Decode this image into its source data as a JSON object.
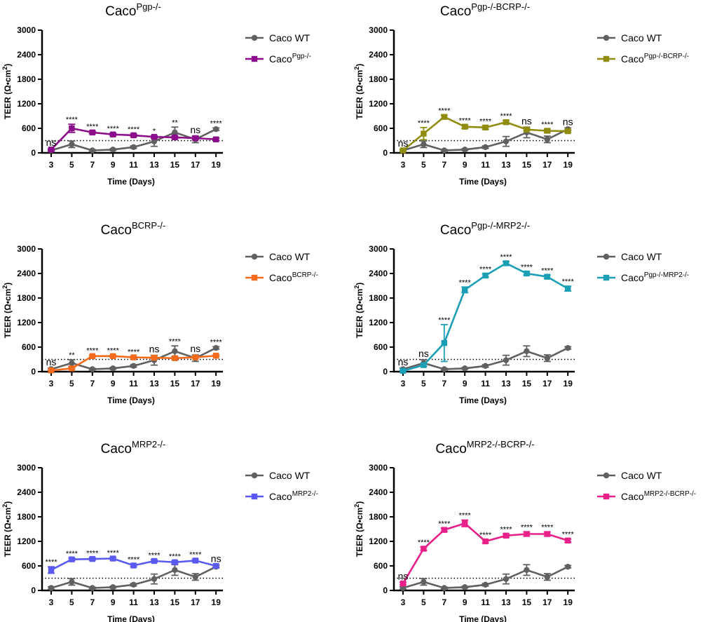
{
  "figure": {
    "annot_marker": "*",
    "wt_color": "#606060"
  },
  "chart_data": [
    {
      "type": "line",
      "title_base": "Caco",
      "title_sup": "Pgp-/-",
      "xlabel": "Time (Days)",
      "ylabel": "TEER (Ω•cm2)",
      "x": [
        3,
        5,
        7,
        9,
        11,
        13,
        15,
        17,
        19
      ],
      "xticklabels": [
        "3",
        "5",
        "7",
        "9",
        "11",
        "13",
        "15",
        "17",
        "19"
      ],
      "ylim": [
        0,
        3000
      ],
      "yticks": [
        0,
        600,
        1200,
        1800,
        2400,
        3000
      ],
      "yticklabels": [
        "0",
        "600",
        "1200",
        "1800",
        "2400",
        "3000"
      ],
      "threshold": 300,
      "series": [
        {
          "name": "Caco WT",
          "name_base": "Caco WT",
          "name_sup": "",
          "color": "#606060",
          "marker": "circle",
          "values": [
            60,
            210,
            60,
            80,
            140,
            280,
            500,
            330,
            580
          ],
          "errors": [
            30,
            80,
            20,
            20,
            30,
            120,
            130,
            80,
            30
          ]
        },
        {
          "name": "CacoPgp-/-",
          "name_base": "Caco",
          "name_sup": "Pgp-/-",
          "color": "#8b0d8b",
          "marker": "square",
          "values": [
            80,
            600,
            500,
            450,
            430,
            390,
            380,
            360,
            330
          ],
          "errors": [
            20,
            100,
            30,
            30,
            30,
            30,
            30,
            40,
            30
          ]
        }
      ],
      "annotations": [
        "ns",
        "****",
        "****",
        "****",
        "****",
        "*",
        "**",
        "ns",
        "****"
      ]
    },
    {
      "type": "line",
      "title_base": "Caco",
      "title_sup": "Pgp-/-BCRP-/-",
      "xlabel": "Time (Days)",
      "ylabel": "TEER (Ω•cm2)",
      "x": [
        3,
        5,
        7,
        9,
        11,
        13,
        15,
        17,
        19
      ],
      "xticklabels": [
        "3",
        "5",
        "7",
        "9",
        "11",
        "13",
        "15",
        "17",
        "19"
      ],
      "ylim": [
        0,
        3000
      ],
      "yticks": [
        0,
        600,
        1200,
        1800,
        2400,
        3000
      ],
      "yticklabels": [
        "0",
        "600",
        "1200",
        "1800",
        "2400",
        "3000"
      ],
      "threshold": 300,
      "series": [
        {
          "name": "Caco WT",
          "name_base": "Caco WT",
          "name_sup": "",
          "color": "#606060",
          "marker": "circle",
          "values": [
            60,
            210,
            60,
            80,
            140,
            280,
            500,
            330,
            580
          ],
          "errors": [
            30,
            80,
            20,
            20,
            30,
            120,
            130,
            80,
            30
          ]
        },
        {
          "name": "CacoPgp-/-BCRP-/-",
          "name_base": "Caco",
          "name_sup": "Pgp-/-BCRP-/-",
          "color": "#8f8c10",
          "marker": "square",
          "values": [
            60,
            470,
            880,
            640,
            620,
            750,
            570,
            540,
            530
          ],
          "errors": [
            20,
            150,
            40,
            40,
            40,
            40,
            30,
            40,
            30
          ]
        }
      ],
      "annotations": [
        "ns",
        "****",
        "****",
        "****",
        "****",
        "****",
        "ns",
        "****",
        "ns"
      ]
    },
    {
      "type": "line",
      "title_base": "Caco",
      "title_sup": "BCRP-/-",
      "xlabel": "Time (Days)",
      "ylabel": "TEER (Ω•cm2)",
      "x": [
        3,
        5,
        7,
        9,
        11,
        13,
        15,
        17,
        19
      ],
      "xticklabels": [
        "3",
        "5",
        "7",
        "9",
        "11",
        "13",
        "15",
        "17",
        "19"
      ],
      "ylim": [
        0,
        3000
      ],
      "yticks": [
        0,
        600,
        1200,
        1800,
        2400,
        3000
      ],
      "yticklabels": [
        "0",
        "600",
        "1200",
        "1800",
        "2400",
        "3000"
      ],
      "threshold": 300,
      "series": [
        {
          "name": "Caco WT",
          "name_base": "Caco WT",
          "name_sup": "",
          "color": "#606060",
          "marker": "circle",
          "values": [
            60,
            210,
            60,
            80,
            140,
            280,
            500,
            330,
            580
          ],
          "errors": [
            30,
            80,
            20,
            20,
            30,
            120,
            130,
            80,
            30
          ]
        },
        {
          "name": "CacoBCRP-/-",
          "name_base": "Caco",
          "name_sup": "BCRP-/-",
          "color": "#f26b1d",
          "marker": "square",
          "values": [
            30,
            80,
            380,
            380,
            350,
            340,
            330,
            350,
            390
          ],
          "errors": [
            10,
            20,
            20,
            20,
            20,
            20,
            20,
            20,
            20
          ]
        }
      ],
      "annotations": [
        "ns",
        "**",
        "****",
        "****",
        "****",
        "ns",
        "****",
        "ns",
        "****"
      ]
    },
    {
      "type": "line",
      "title_base": "Caco",
      "title_sup": "Pgp-/-MRP2-/-",
      "xlabel": "Time (Days)",
      "ylabel": "TEER (Ω•cm2)",
      "x": [
        3,
        5,
        7,
        9,
        11,
        13,
        15,
        17,
        19
      ],
      "xticklabels": [
        "3",
        "5",
        "7",
        "9",
        "11",
        "13",
        "15",
        "17",
        "19"
      ],
      "ylim": [
        0,
        3000
      ],
      "yticks": [
        0,
        600,
        1200,
        1800,
        2400,
        3000
      ],
      "yticklabels": [
        "0",
        "600",
        "1200",
        "1800",
        "2400",
        "3000"
      ],
      "threshold": 300,
      "series": [
        {
          "name": "Caco WT",
          "name_base": "Caco WT",
          "name_sup": "",
          "color": "#606060",
          "marker": "circle",
          "values": [
            60,
            210,
            60,
            80,
            140,
            280,
            500,
            330,
            580
          ],
          "errors": [
            30,
            80,
            20,
            20,
            30,
            120,
            130,
            80,
            30
          ]
        },
        {
          "name": "CacoPgp-/-MRP2-/-",
          "name_base": "Caco",
          "name_sup": "Pgp-/-MRP2-/-",
          "color": "#1a9fb5",
          "marker": "square",
          "values": [
            20,
            160,
            700,
            2000,
            2350,
            2650,
            2400,
            2320,
            2030
          ],
          "errors": [
            10,
            30,
            450,
            70,
            40,
            40,
            40,
            40,
            60
          ]
        }
      ],
      "annotations": [
        "ns",
        "ns",
        "****",
        "****",
        "****",
        "****",
        "****",
        "****",
        "****"
      ]
    },
    {
      "type": "line",
      "title_base": "Caco",
      "title_sup": "MRP2-/-",
      "xlabel": "Time (Days)",
      "ylabel": "TEER (Ω•cm2)",
      "x": [
        3,
        5,
        7,
        9,
        11,
        13,
        15,
        17,
        19
      ],
      "xticklabels": [
        "3",
        "5",
        "7",
        "9",
        "11",
        "13",
        "15",
        "17",
        "19"
      ],
      "ylim": [
        0,
        3000
      ],
      "yticks": [
        0,
        600,
        1200,
        1800,
        2400,
        3000
      ],
      "yticklabels": [
        "0",
        "600",
        "1200",
        "1800",
        "2400",
        "3000"
      ],
      "threshold": 300,
      "series": [
        {
          "name": "Caco WT",
          "name_base": "Caco WT",
          "name_sup": "",
          "color": "#606060",
          "marker": "circle",
          "values": [
            60,
            210,
            60,
            80,
            140,
            280,
            500,
            330,
            580
          ],
          "errors": [
            30,
            80,
            20,
            20,
            30,
            120,
            130,
            80,
            30
          ]
        },
        {
          "name": "CacoMRP2-/-",
          "name_base": "Caco",
          "name_sup": "MRP2-/-",
          "color": "#5a5af0",
          "marker": "square",
          "values": [
            500,
            760,
            770,
            780,
            610,
            720,
            690,
            730,
            600
          ],
          "errors": [
            80,
            30,
            30,
            30,
            30,
            30,
            30,
            30,
            30
          ]
        }
      ],
      "annotations": [
        "****",
        "****",
        "****",
        "****",
        "****",
        "****",
        "****",
        "****",
        "ns"
      ]
    },
    {
      "type": "line",
      "title_base": "Caco",
      "title_sup": "MRP2-/-BCRP-/-",
      "xlabel": "Time (Days)",
      "ylabel": "TEER (Ω•cm2)",
      "x": [
        3,
        5,
        7,
        9,
        11,
        13,
        15,
        17,
        19
      ],
      "xticklabels": [
        "3",
        "5",
        "7",
        "9",
        "11",
        "13",
        "15",
        "17",
        "19"
      ],
      "ylim": [
        0,
        3000
      ],
      "yticks": [
        0,
        600,
        1200,
        1800,
        2400,
        3000
      ],
      "yticklabels": [
        "0",
        "600",
        "1200",
        "1800",
        "2400",
        "3000"
      ],
      "threshold": 300,
      "series": [
        {
          "name": "Caco WT",
          "name_base": "Caco WT",
          "name_sup": "",
          "color": "#606060",
          "marker": "circle",
          "values": [
            60,
            210,
            60,
            80,
            140,
            280,
            500,
            330,
            580
          ],
          "errors": [
            30,
            80,
            20,
            20,
            30,
            120,
            130,
            80,
            30
          ]
        },
        {
          "name": "CacoMRP2-/-BCRP-/-",
          "name_base": "Caco",
          "name_sup": "MRP2-/-BCRP-/-",
          "color": "#e8208a",
          "marker": "square",
          "values": [
            170,
            1020,
            1480,
            1640,
            1200,
            1340,
            1380,
            1380,
            1220
          ],
          "errors": [
            30,
            40,
            40,
            80,
            40,
            40,
            50,
            50,
            40
          ]
        }
      ],
      "annotations": [
        "ns",
        "****",
        "****",
        "****",
        "****",
        "****",
        "****",
        "****",
        "****"
      ]
    }
  ]
}
